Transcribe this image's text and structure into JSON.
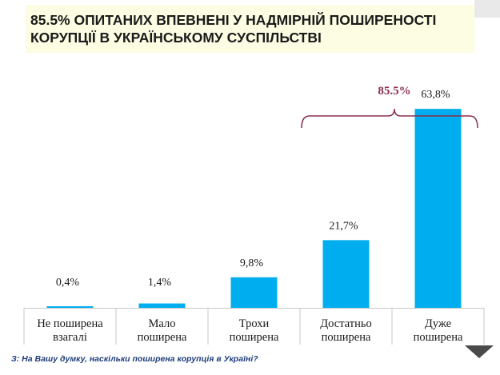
{
  "title": {
    "line1": "85.5% ОПИТАНИХ ВПЕВНЕНІ У НАДМІРНІЙ ПОШИРЕНОСТІ",
    "line2": "КОРУПЦІЇ В УКРАЇНСЬКОМУ СУСПІЛЬСТВІ"
  },
  "question": "З: На Вашу думку, наскільки поширена корупція в Україні?",
  "colors": {
    "bar": "#00aeef",
    "bracket": "#8a2f4e",
    "title_bg": "#fdfde3"
  },
  "chart_data": {
    "type": "bar",
    "title": "85.5% ОПИТАНИХ ВПЕВНЕНІ У НАДМІРНІЙ ПОШИРЕНОСТІ КОРУПЦІЇ В УКРАЇНСЬКОМУ СУСПІЛЬСТВІ",
    "categories": [
      [
        "Не поширена",
        "взагалі"
      ],
      [
        "Мало",
        "поширена"
      ],
      [
        "Трохи",
        "поширена"
      ],
      [
        "Достатньо",
        "поширена"
      ],
      [
        "Дуже",
        "поширена"
      ]
    ],
    "values": [
      0.4,
      1.4,
      9.8,
      21.7,
      63.8
    ],
    "value_labels": [
      "0,4%",
      "1,4%",
      "9,8%",
      "21,7%",
      "63,8%"
    ],
    "ylim": [
      0,
      70
    ],
    "xlabel": "",
    "ylabel": "",
    "annotations": [
      {
        "text": "85.5%",
        "type": "bracket",
        "spans_categories": [
          3,
          4
        ]
      }
    ]
  }
}
